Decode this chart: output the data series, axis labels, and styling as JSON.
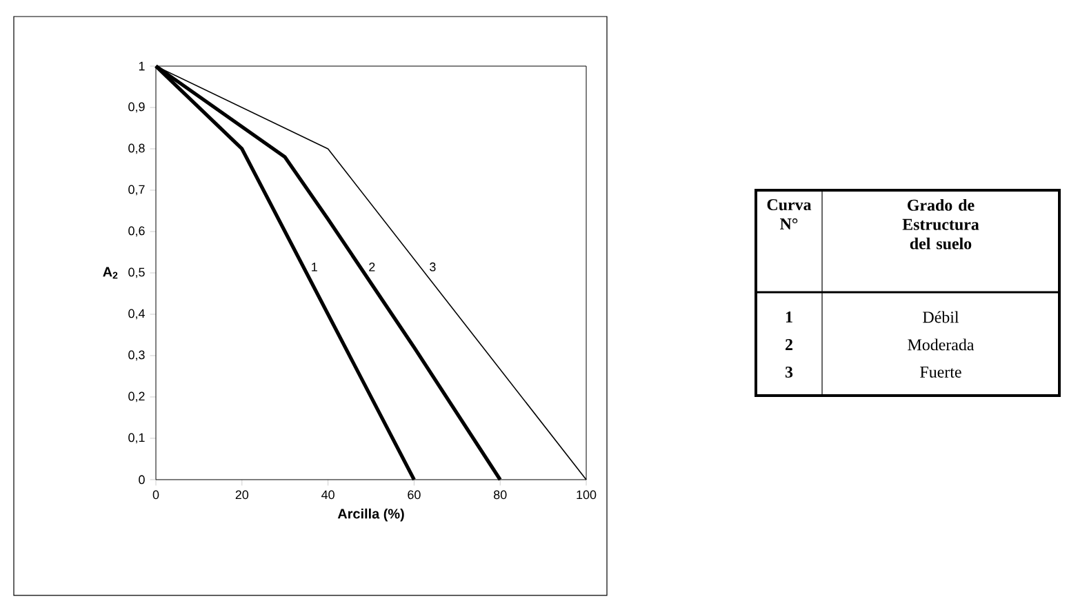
{
  "chart_data": {
    "type": "line",
    "xlabel": "Arcilla (%)",
    "ylabel": "A$_{2}$",
    "series": [
      {
        "name": "1",
        "color": "#000000",
        "x": [
          0,
          20,
          30,
          40,
          60
        ],
        "values": [
          1,
          0.8,
          0.6,
          0.4,
          0
        ]
      },
      {
        "name": "2",
        "color": "#000000",
        "x": [
          0,
          30,
          40,
          60,
          80
        ],
        "values": [
          1,
          0.78,
          0.63,
          0.32,
          0
        ]
      },
      {
        "name": "3",
        "color": "#000000",
        "x": [
          0,
          40,
          100
        ],
        "values": [
          1,
          0.8,
          0
        ]
      }
    ],
    "xlim": [
      0,
      100
    ],
    "ylim": [
      0,
      1
    ],
    "xticks": [
      0,
      20,
      40,
      60,
      80,
      100
    ],
    "yticks": [
      0,
      {
        "value": 0.1,
        "label": "0,1"
      },
      {
        "value": 0.2,
        "label": "0,2"
      },
      {
        "value": 0.3,
        "label": "0,3"
      },
      {
        "value": 0.4,
        "label": "0,4"
      },
      {
        "value": 0.5,
        "label": "0,5"
      },
      {
        "value": 0.6,
        "label": "0,6"
      },
      {
        "value": 0.7,
        "label": "0,7"
      },
      {
        "value": 0.8,
        "label": "0,8"
      },
      {
        "value": 0.9,
        "label": "0,9"
      },
      1
    ],
    "grid": false,
    "marker": "none",
    "line_style": "solid",
    "annotations": [
      "Curva N°",
      "Grado de Estructura del suelo",
      "Débil",
      "Moderada",
      "Fuerte"
    ]
  }
}
